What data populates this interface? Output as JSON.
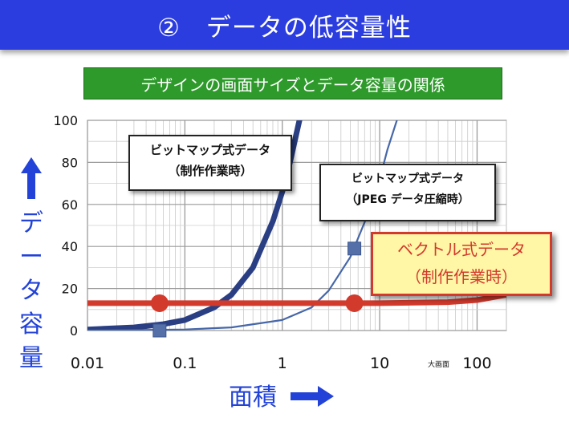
{
  "header": {
    "title": "②　データの低容量性",
    "subtitle": "デザインの画面サイズとデータ容量の関係"
  },
  "y_caption": [
    "デ",
    "ー",
    "タ",
    "容",
    "量"
  ],
  "x_caption": "面積",
  "chart_data": {
    "type": "line",
    "xscale": "log",
    "xlim": [
      0.01,
      200
    ],
    "ylim": [
      0,
      100
    ],
    "yticks": [
      0,
      20,
      40,
      60,
      80,
      100
    ],
    "xticks": [
      0.01,
      0.1,
      1,
      10,
      100
    ],
    "ytick_labels": [
      "0",
      "20",
      "40",
      "60",
      "80",
      "100"
    ],
    "xtick_labels": [
      "0.01",
      "0.1",
      "1",
      "10",
      "100"
    ],
    "grid": true,
    "series": [
      {
        "name": "ビットマップ式データ（制作作業時）",
        "color": "#2a3f83",
        "x": [
          0.01,
          0.03,
          0.06,
          0.1,
          0.2,
          0.3,
          0.5,
          0.8,
          1.0,
          1.2,
          1.5
        ],
        "y": [
          0.5,
          1.5,
          3,
          5,
          11,
          17,
          30,
          52,
          66,
          80,
          100
        ]
      },
      {
        "name": "ビットマップ式データ（JPEGデータ圧縮時）",
        "color": "#4667a8",
        "x": [
          0.01,
          0.1,
          0.3,
          1,
          2,
          3,
          5,
          8,
          10,
          12,
          15
        ],
        "y": [
          0,
          0.5,
          1.5,
          5,
          11,
          19,
          35,
          58,
          72,
          86,
          100
        ]
      },
      {
        "name": "ベクトル式データ（制作作業時）",
        "color": "#d23a2c",
        "x": [
          0.01,
          1,
          10,
          50,
          100,
          200
        ],
        "y": [
          13,
          13,
          13,
          13.5,
          14.5,
          17
        ]
      }
    ],
    "markers": [
      {
        "series": "ビットマップ式データ（制作作業時）",
        "shape": "square",
        "x": 0.055,
        "y": 0
      },
      {
        "series": "ビットマップ式データ（JPEGデータ圧縮時）",
        "shape": "square",
        "x": 5.5,
        "y": 39
      },
      {
        "series": "ベクトル式データ（制作作業時）",
        "shape": "circle",
        "x": 0.055,
        "y": 13
      },
      {
        "series": "ベクトル式データ（制作作業時）",
        "shape": "circle",
        "x": 5.5,
        "y": 13
      }
    ],
    "annotations": [
      {
        "lines": [
          "ビットマップ式データ",
          "（制作作業時）"
        ]
      },
      {
        "lines": [
          "ビットマップ式データ",
          "（JPEG データ圧縮時）"
        ]
      },
      {
        "lines": [
          "ベクトル式データ",
          "（制作作業時）"
        ]
      },
      {
        "text": "大画面"
      }
    ]
  }
}
